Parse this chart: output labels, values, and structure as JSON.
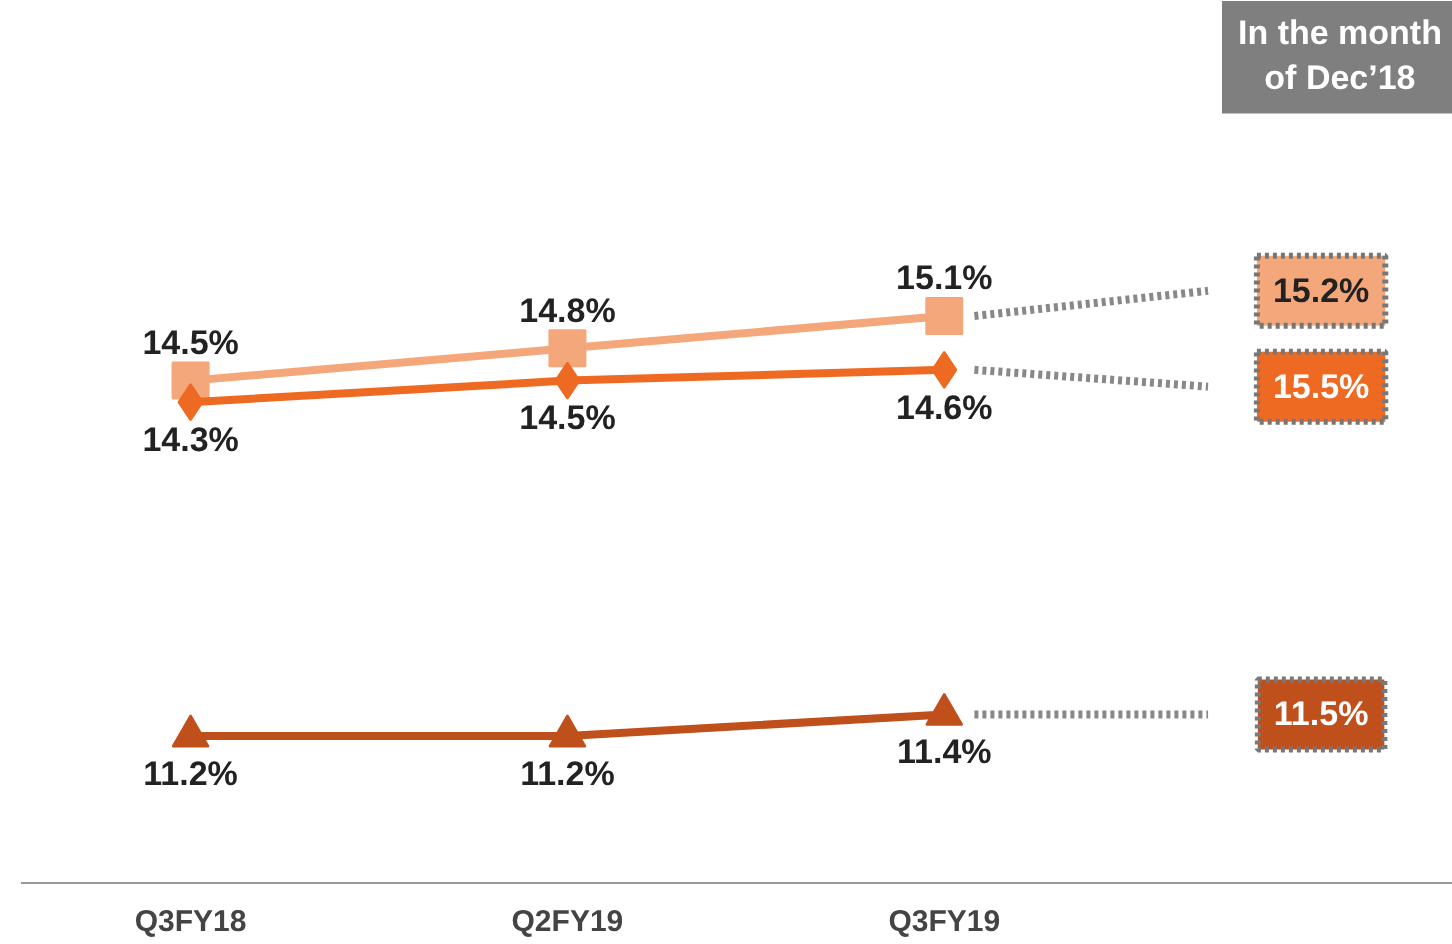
{
  "chart_data": {
    "type": "line",
    "categories": [
      "Q3FY18",
      "Q2FY19",
      "Q3FY19"
    ],
    "series": [
      {
        "color": "#f4a77a",
        "marker": "square",
        "values": [
          14.5,
          14.8,
          15.1
        ],
        "value_labels": [
          "14.5%",
          "14.8%",
          "15.1%"
        ]
      },
      {
        "color": "#ee6a22",
        "marker": "diamond",
        "values": [
          14.3,
          14.5,
          14.6
        ],
        "value_labels": [
          "14.3%",
          "14.5%",
          "14.6%"
        ]
      },
      {
        "color": "#c0501b",
        "marker": "triangle",
        "values": [
          11.2,
          11.2,
          11.4
        ],
        "value_labels": [
          "11.2%",
          "11.2%",
          "11.4%"
        ]
      }
    ],
    "annotations": [
      "In the month\nof Dec’18",
      "15.2%",
      "15.5%",
      "11.5%"
    ],
    "grid": false
  }
}
